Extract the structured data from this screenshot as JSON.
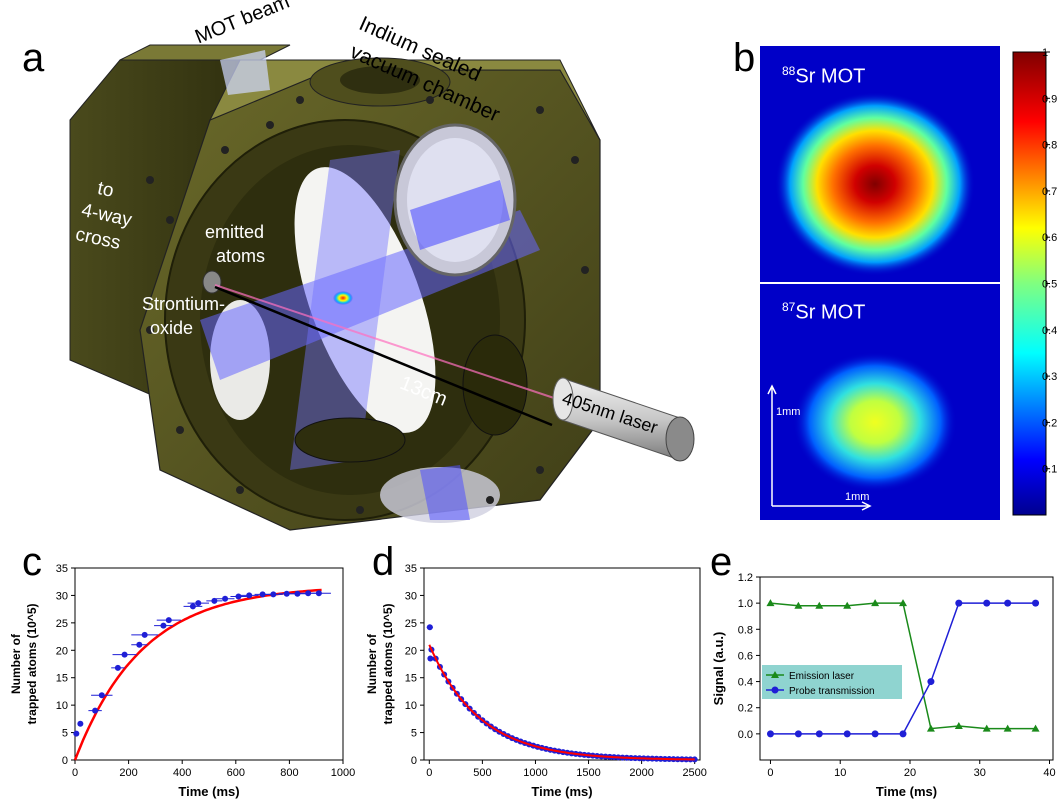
{
  "panel_a": {
    "letter": "a",
    "labels": {
      "mot_beam": "MOT beam",
      "indium_line1": "Indium sealed",
      "indium_line2": "vacuum chamber",
      "to_cross_1": "to",
      "to_cross_2": "4-way",
      "to_cross_3": "cross",
      "emitted_1": "emitted",
      "emitted_2": "atoms",
      "sro_1": "Strontium-",
      "sro_2": "oxide",
      "distance": "13cm",
      "laser": "405nm laser"
    }
  },
  "panel_b": {
    "letter": "b",
    "top_label_sup": "88",
    "top_label_rest": "Sr MOT",
    "bottom_label_sup": "87",
    "bottom_label_rest": "Sr MOT",
    "scale_v": "1mm",
    "scale_h": "1mm",
    "colorbar_ticks": [
      "1",
      "0.9",
      "0.8",
      "0.7",
      "0.6",
      "0.5",
      "0.4",
      "0.3",
      "0.2",
      "0.1"
    ],
    "colorbar_values": [
      1,
      0.9,
      0.8,
      0.7,
      0.6,
      0.5,
      0.4,
      0.3,
      0.2,
      0.1
    ],
    "colors": {
      "low": "#00008f",
      "mid": "#ffff00",
      "high": "#800000"
    }
  },
  "chart_data": [
    {
      "panel": "c",
      "type": "scatter",
      "xlabel": "Time (ms)",
      "ylabel_line1": "Number of",
      "ylabel_line2": "trapped atoms (10^5)",
      "xlim": [
        0,
        1000
      ],
      "ylim": [
        0,
        35
      ],
      "xticks": [
        0,
        200,
        400,
        600,
        800,
        1000
      ],
      "yticks": [
        0,
        5,
        10,
        15,
        20,
        25,
        30,
        35
      ],
      "points": [
        {
          "x": 5,
          "y": 4.8,
          "xerr": 0
        },
        {
          "x": 20,
          "y": 6.6,
          "xerr": 0
        },
        {
          "x": 75,
          "y": 9.0,
          "xerr": 25
        },
        {
          "x": 100,
          "y": 11.8,
          "xerr": 40
        },
        {
          "x": 160,
          "y": 16.8,
          "xerr": 25
        },
        {
          "x": 185,
          "y": 19.2,
          "xerr": 45
        },
        {
          "x": 240,
          "y": 21.0,
          "xerr": 30
        },
        {
          "x": 260,
          "y": 22.8,
          "xerr": 50
        },
        {
          "x": 330,
          "y": 24.5,
          "xerr": 35
        },
        {
          "x": 350,
          "y": 25.5,
          "xerr": 45
        },
        {
          "x": 440,
          "y": 28.0,
          "xerr": 35
        },
        {
          "x": 460,
          "y": 28.6,
          "xerr": 40
        },
        {
          "x": 520,
          "y": 29.0,
          "xerr": 30
        },
        {
          "x": 560,
          "y": 29.4,
          "xerr": 35
        },
        {
          "x": 610,
          "y": 29.8,
          "xerr": 30
        },
        {
          "x": 650,
          "y": 30.0,
          "xerr": 35
        },
        {
          "x": 700,
          "y": 30.2,
          "xerr": 30
        },
        {
          "x": 740,
          "y": 30.2,
          "xerr": 35
        },
        {
          "x": 790,
          "y": 30.3,
          "xerr": 30
        },
        {
          "x": 830,
          "y": 30.3,
          "xerr": 35
        },
        {
          "x": 870,
          "y": 30.4,
          "xerr": 35
        },
        {
          "x": 910,
          "y": 30.4,
          "xerr": 45
        }
      ],
      "fit": {
        "color": "#ff0000",
        "A": 31.8,
        "tau": 250
      },
      "marker_color": "#1f1fd6"
    },
    {
      "panel": "d",
      "type": "scatter",
      "xlabel": "Time (ms)",
      "ylabel_line1": "Number of",
      "ylabel_line2": "trapped atoms (10^5)",
      "xlim": [
        -50,
        2550
      ],
      "ylim": [
        0,
        35
      ],
      "xticks": [
        0,
        500,
        1000,
        1500,
        2000,
        2500
      ],
      "yticks": [
        0,
        5,
        10,
        15,
        20,
        25,
        30,
        35
      ],
      "points_decay": {
        "A": 21,
        "tau": 470,
        "start": 20,
        "end": 2500,
        "step": 40
      },
      "extra_points": [
        {
          "x": 5,
          "y": 24.2,
          "xerr": 30
        },
        {
          "x": 10,
          "y": 18.5,
          "xerr": 20
        }
      ],
      "fit": {
        "color": "#ff0000",
        "A": 21,
        "tau": 470
      },
      "marker_color": "#1f1fd6"
    },
    {
      "panel": "e",
      "type": "line",
      "xlabel": "Time (ms)",
      "ylabel": "Signal (a.u.)",
      "xlim": [
        -1.5,
        40.5
      ],
      "ylim": [
        -0.2,
        1.2
      ],
      "xticks": [
        0,
        10,
        20,
        30,
        40
      ],
      "yticks": [
        "0.0",
        "0.2",
        "0.4",
        "0.6",
        "0.8",
        "1.0",
        "1.2"
      ],
      "ytick_values": [
        0,
        0.2,
        0.4,
        0.6,
        0.8,
        1.0,
        1.2
      ],
      "series": [
        {
          "name": "Emission laser",
          "color": "#1a8a1a",
          "marker": "triangle",
          "x": [
            0,
            4,
            7,
            11,
            15,
            19,
            23,
            27,
            31,
            34,
            38
          ],
          "y": [
            1.0,
            0.98,
            0.98,
            0.98,
            1.0,
            1.0,
            0.04,
            0.06,
            0.04,
            0.04,
            0.04
          ]
        },
        {
          "name": "Probe transmission",
          "color": "#1f1fd6",
          "marker": "circle",
          "x": [
            0,
            4,
            7,
            11,
            15,
            19,
            23,
            27,
            31,
            34,
            38
          ],
          "y": [
            0,
            0,
            0,
            0,
            0,
            0,
            0.4,
            1.0,
            1.0,
            1.0,
            1.0
          ]
        }
      ],
      "legend_bg": "#8fd4d0"
    }
  ]
}
